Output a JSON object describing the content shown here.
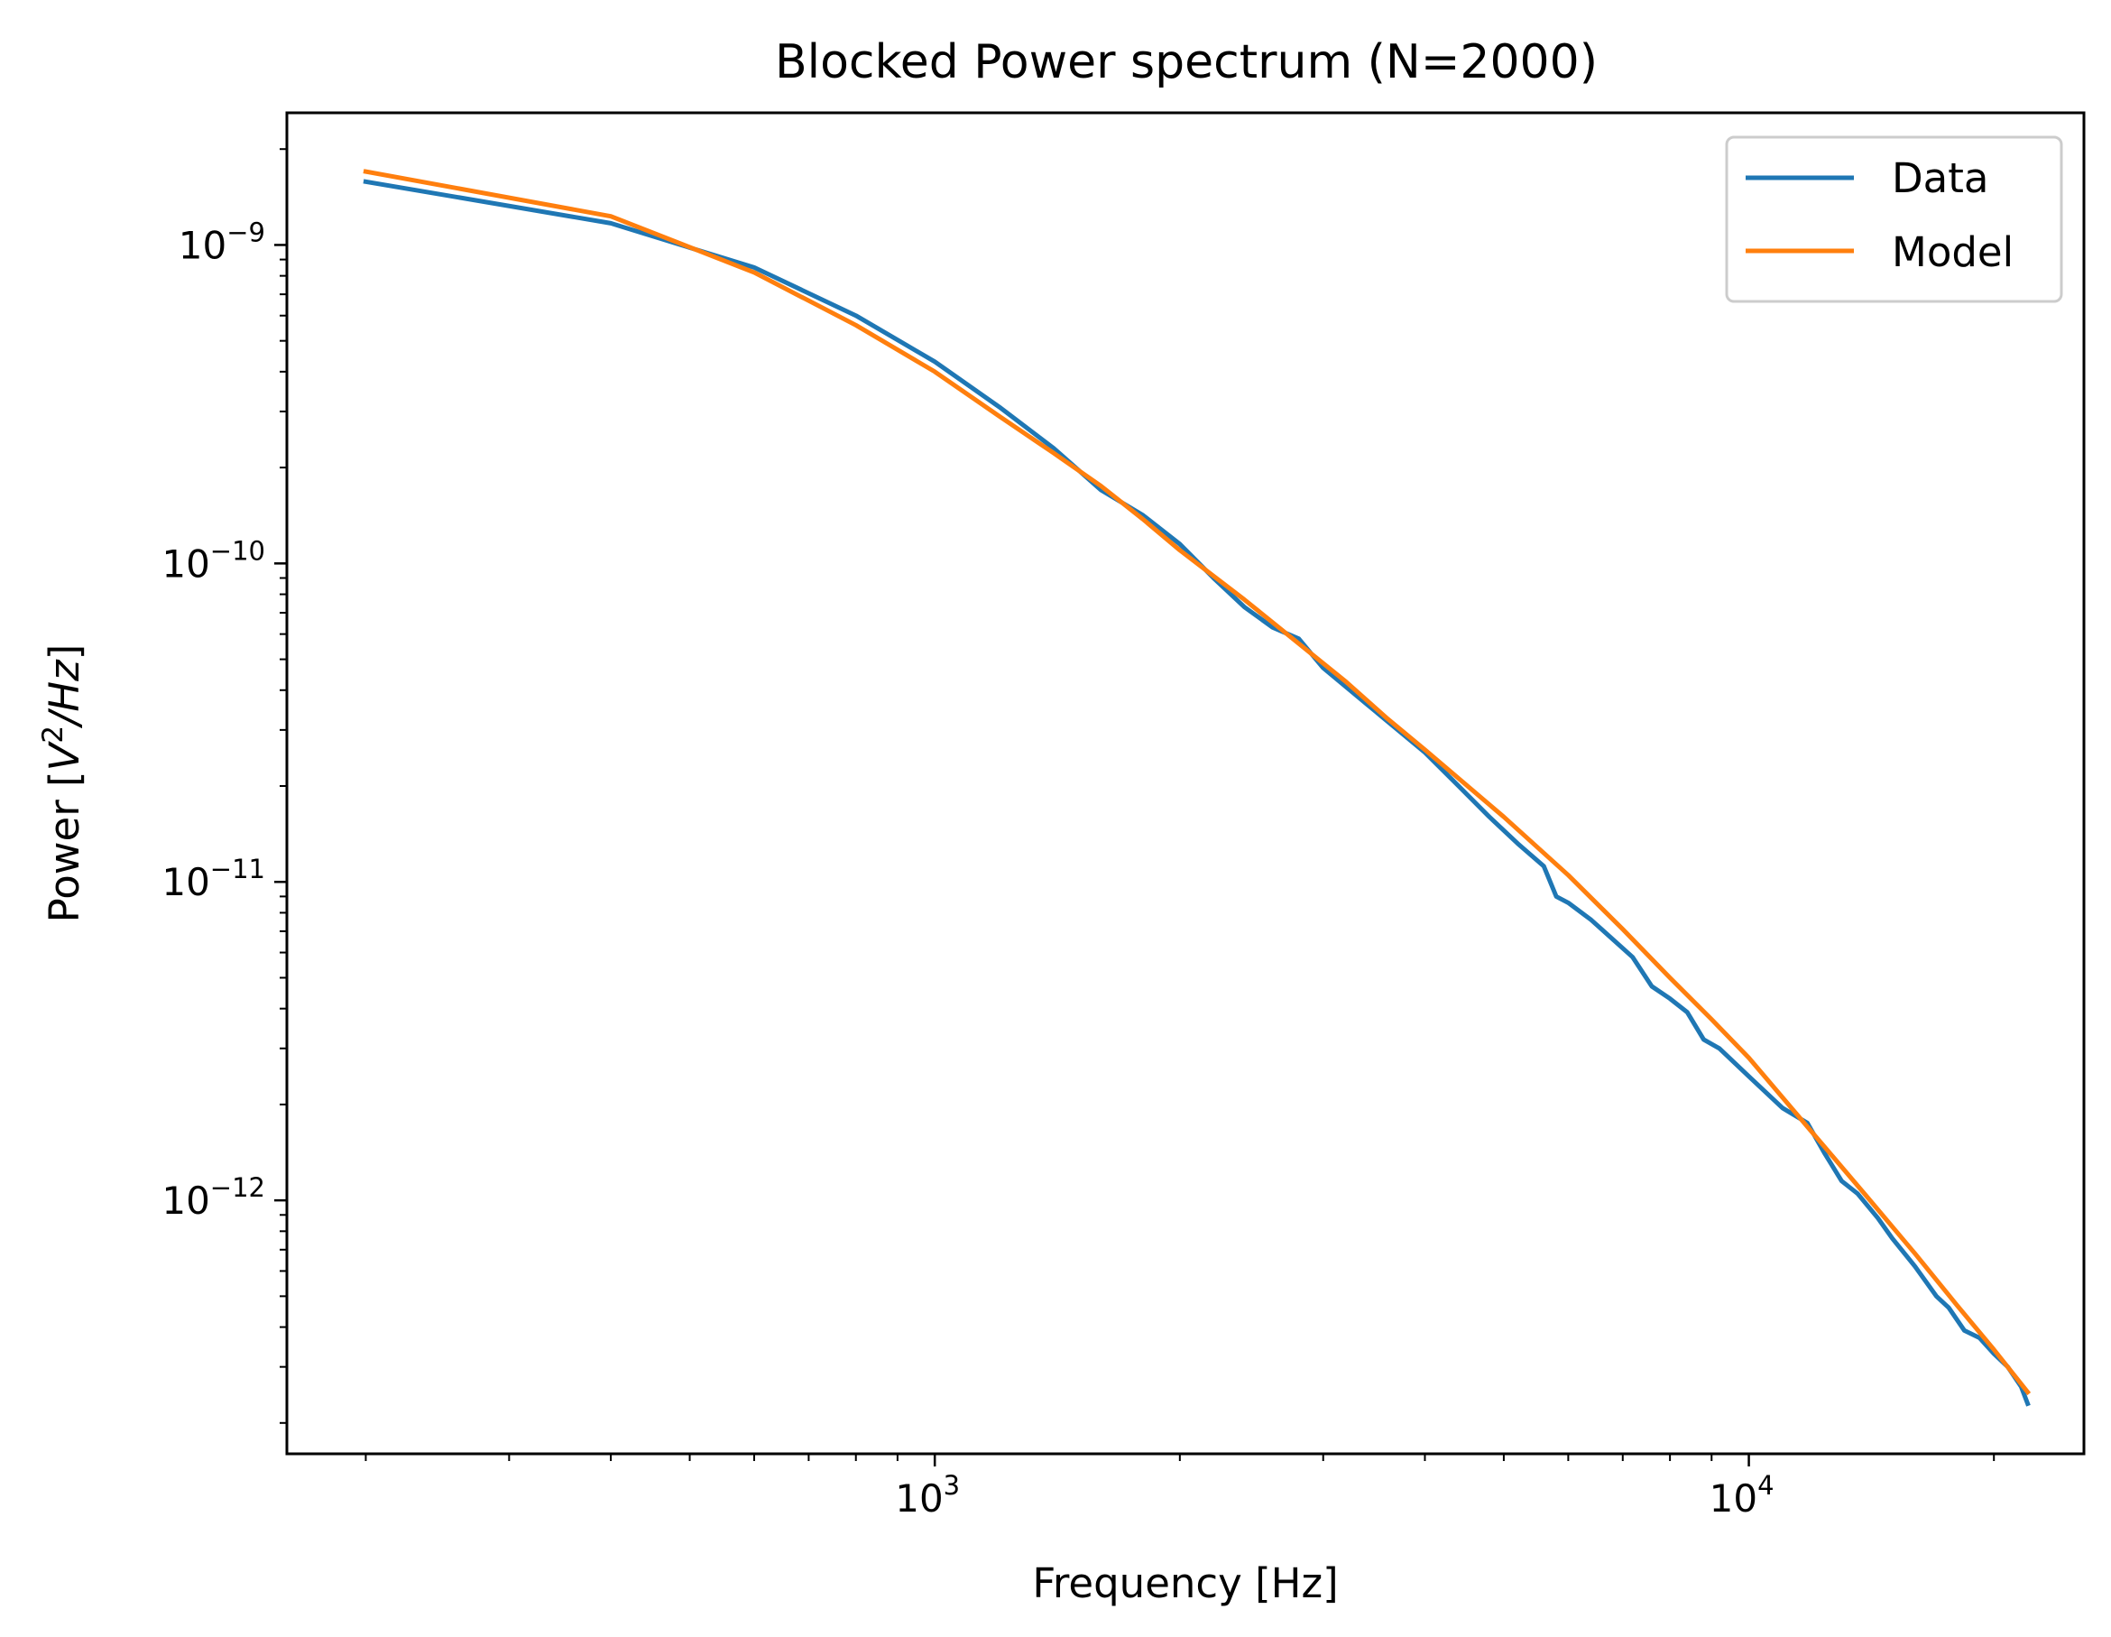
{
  "chart_data": {
    "type": "line",
    "title": "Blocked Power spectrum (N=2000)",
    "xlabel": "Frequency [Hz]",
    "ylabel_text": "Power [",
    "ylabel_math_base": "V",
    "ylabel_math_sup": "2",
    "ylabel_math_rest": "/Hz",
    "ylabel_close": "]",
    "x_scale": "log",
    "y_scale": "log",
    "xlim": [
      160,
      25800
    ],
    "ylim": [
      1.6e-13,
      2.6e-09
    ],
    "grid": false,
    "legend_position": "top-right",
    "x_ticks": [
      {
        "value": 1000,
        "base": "10",
        "exp": "3"
      },
      {
        "value": 10000,
        "base": "10",
        "exp": "4"
      }
    ],
    "y_ticks": [
      {
        "value": 1e-09,
        "base": "10",
        "exp": "−9"
      },
      {
        "value": 1e-10,
        "base": "10",
        "exp": "−10"
      },
      {
        "value": 1e-11,
        "base": "10",
        "exp": "−11"
      },
      {
        "value": 1e-12,
        "base": "10",
        "exp": "−12"
      }
    ],
    "series": [
      {
        "name": "Data",
        "color": "#1f77b4",
        "x": [
          200,
          400,
          600,
          800,
          1000,
          1200,
          1400,
          1600,
          1800,
          2000,
          2200,
          2400,
          2600,
          2800,
          3000,
          3400,
          4000,
          4400,
          4800,
          5200,
          5600,
          5800,
          6000,
          6400,
          7200,
          7600,
          8000,
          8400,
          8800,
          9200,
          10000,
          11000,
          11800,
          12400,
          13000,
          13600,
          14400,
          15000,
          16000,
          17000,
          17600,
          18400,
          19200,
          20000,
          20800,
          21600,
          22000
        ],
        "values": [
          1.58e-09,
          1.17e-09,
          8.5e-10,
          6e-10,
          4.3e-10,
          3.1e-10,
          2.3e-10,
          1.7e-10,
          1.42e-10,
          1.15e-10,
          9e-11,
          7.3e-11,
          6.3e-11,
          5.8e-11,
          4.7e-11,
          3.6e-11,
          2.55e-11,
          2e-11,
          1.6e-11,
          1.32e-11,
          1.12e-11,
          9e-12,
          8.6e-12,
          7.6e-12,
          5.8e-12,
          4.7e-12,
          4.3e-12,
          3.9e-12,
          3.2e-12,
          3e-12,
          2.45e-12,
          1.95e-12,
          1.75e-12,
          1.4e-12,
          1.15e-12,
          1.05e-12,
          8.8e-13,
          7.6e-13,
          6.2e-13,
          5e-13,
          4.6e-13,
          3.9e-13,
          3.7e-13,
          3.3e-13,
          3e-13,
          2.6e-13,
          2.3e-13
        ]
      },
      {
        "name": "Model",
        "color": "#ff7f0e",
        "x": [
          200,
          400,
          600,
          800,
          1000,
          1200,
          1400,
          1600,
          1800,
          2000,
          2400,
          2800,
          3200,
          3600,
          4000,
          5000,
          6000,
          7000,
          8000,
          9000,
          10000,
          12000,
          14000,
          16000,
          18000,
          20000,
          22000
        ],
        "values": [
          1.7e-09,
          1.23e-09,
          8.2e-10,
          5.6e-10,
          4e-10,
          2.9e-10,
          2.22e-10,
          1.75e-10,
          1.38e-10,
          1.1e-10,
          7.7e-11,
          5.6e-11,
          4.25e-11,
          3.25e-11,
          2.6e-11,
          1.6e-11,
          1.05e-11,
          7.1e-12,
          5e-12,
          3.7e-12,
          2.8e-12,
          1.62e-12,
          1.02e-12,
          6.8e-13,
          4.7e-13,
          3.4e-13,
          2.5e-13
        ]
      }
    ]
  }
}
